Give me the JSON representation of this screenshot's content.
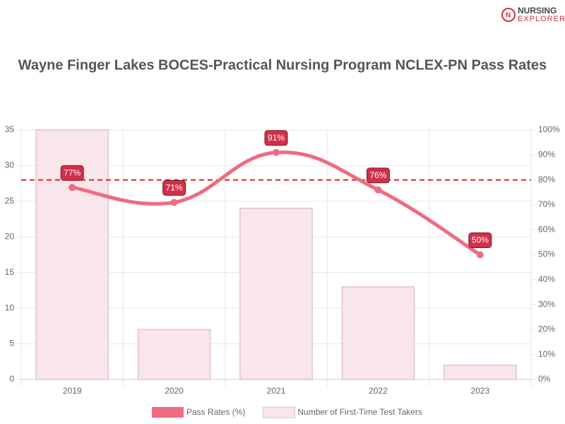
{
  "logo": [
    "NURSING",
    "EXPLORER"
  ],
  "chart_data": {
    "type": "combo",
    "title": "Wayne Finger Lakes BOCES-Practical Nursing Program NCLEX-PN Pass Rates",
    "categories": [
      "2019",
      "2020",
      "2021",
      "2022",
      "2023"
    ],
    "series": [
      {
        "name": "Pass Rates (%)",
        "type": "line",
        "axis": "y2",
        "color": "#ef6b80",
        "values": [
          77,
          71,
          91,
          76,
          50
        ],
        "value_labels": [
          "77%",
          "71%",
          "91%",
          "76%",
          "50%"
        ]
      },
      {
        "name": "Number of First-Time Test Takers",
        "type": "bar",
        "color": "#f9e6ea",
        "border": "#e6cdd4",
        "values": [
          35,
          7,
          24,
          13,
          2
        ]
      }
    ],
    "ylim": [
      0,
      35
    ],
    "yticks": [
      0,
      5,
      10,
      15,
      20,
      25,
      30,
      35
    ],
    "y2lim": [
      0,
      100
    ],
    "y2ticks": [
      {
        "value": 0,
        "label": "0%"
      },
      {
        "value": 10,
        "label": "10%"
      },
      {
        "value": 20,
        "label": "20%"
      },
      {
        "value": 30,
        "label": "30%"
      },
      {
        "value": 40,
        "label": "40%"
      },
      {
        "value": 50,
        "label": "50%"
      },
      {
        "value": 60,
        "label": "60%"
      },
      {
        "value": 70,
        "label": "70%"
      },
      {
        "value": 80,
        "label": "80%"
      },
      {
        "value": 90,
        "label": "90%"
      },
      {
        "value": 100,
        "label": "100%"
      }
    ],
    "reference_line": {
      "value": 80,
      "axis": "y2",
      "color": "#dd2222"
    },
    "grid": true
  }
}
